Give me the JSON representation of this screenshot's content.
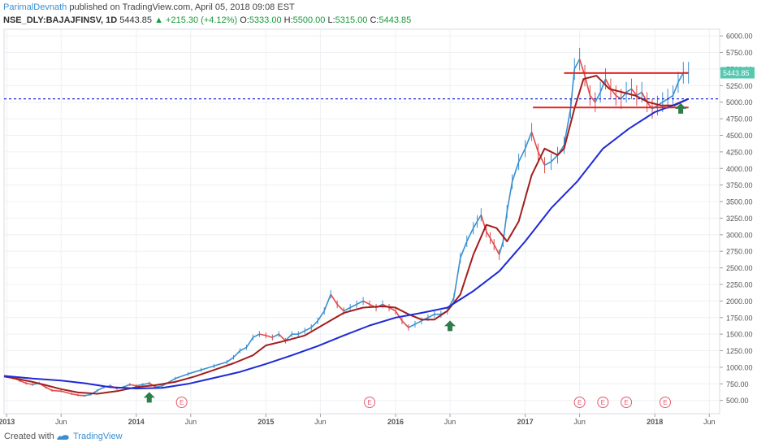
{
  "header": {
    "author": "ParimalDevnath",
    "published_text": "published on TradingView.com, April 05, 2018 09:08 EST",
    "symbol": "NSE_DLY:BAJAJFINSV, 1D",
    "last": "5443.85",
    "change": "+215.30 (+4.12%)",
    "open_label": "O:",
    "open": "5333.00",
    "high_label": "H:",
    "high": "5500.00",
    "low_label": "L:",
    "low": "5315.00",
    "close_label": "C:",
    "close": "5443.85"
  },
  "footer": {
    "created_with": "Created with",
    "brand": "TradingView"
  },
  "colors": {
    "price_up": "#3a8fd0",
    "price_down": "#e04b4b",
    "ma_fast": "#a31d1d",
    "ma_slow": "#1e2ad6",
    "resistance": "#e52424",
    "dotted_level": "#1e2ad6",
    "arrow": "#2f7d4a",
    "earnings": "#e35a6f",
    "price_tag": "#55c8b0"
  },
  "chart_data": {
    "type": "line",
    "title": "",
    "xlabel": "",
    "ylabel": "",
    "ylim": [
      300,
      6100
    ],
    "y_ticks": [
      500,
      750,
      1000,
      1250,
      1500,
      1750,
      2000,
      2250,
      2500,
      2750,
      3000,
      3250,
      3500,
      3750,
      4000,
      4250,
      4500,
      4750,
      5000,
      5250,
      5500,
      5750,
      6000
    ],
    "y_tick_labels": [
      "500.00",
      "750.00",
      "1000.00",
      "1250.00",
      "1500.00",
      "1750.00",
      "2000.00",
      "2250.00",
      "2500.00",
      "2750.00",
      "3000.00",
      "3250.00",
      "3500.00",
      "3750.00",
      "4000.00",
      "4250.00",
      "4500.00",
      "4750.00",
      "5000.00",
      "5250.00",
      "5500.00",
      "5750.00",
      "6000.00"
    ],
    "x_ticks": [
      {
        "label": "2013",
        "t": 2013.0
      },
      {
        "label": "Jun",
        "t": 2013.42
      },
      {
        "label": "2014",
        "t": 2014.0
      },
      {
        "label": "Jun",
        "t": 2014.42
      },
      {
        "label": "2015",
        "t": 2015.0
      },
      {
        "label": "Jun",
        "t": 2015.42
      },
      {
        "label": "2016",
        "t": 2016.0
      },
      {
        "label": "Jun",
        "t": 2016.42
      },
      {
        "label": "2017",
        "t": 2017.0
      },
      {
        "label": "Jun",
        "t": 2017.42
      },
      {
        "label": "2018",
        "t": 2018.0
      },
      {
        "label": "Jun",
        "t": 2018.42
      }
    ],
    "xlim": [
      2012.98,
      2018.5
    ],
    "price_tag": "5443.85",
    "series": [
      {
        "kind": "price",
        "x": [
          2012.98,
          2013.05,
          2013.1,
          2013.15,
          2013.2,
          2013.25,
          2013.3,
          2013.35,
          2013.42,
          2013.5,
          2013.55,
          2013.6,
          2013.65,
          2013.7,
          2013.75,
          2013.8,
          2013.85,
          2013.9,
          2013.95,
          2014.0,
          2014.05,
          2014.1,
          2014.15,
          2014.2,
          2014.3,
          2014.4,
          2014.5,
          2014.6,
          2014.7,
          2014.75,
          2014.8,
          2014.85,
          2014.9,
          2014.95,
          2015.0,
          2015.05,
          2015.1,
          2015.15,
          2015.2,
          2015.25,
          2015.3,
          2015.35,
          2015.4,
          2015.45,
          2015.5,
          2015.55,
          2015.6,
          2015.65,
          2015.7,
          2015.75,
          2015.8,
          2015.85,
          2015.9,
          2015.95,
          2016.0,
          2016.05,
          2016.1,
          2016.15,
          2016.2,
          2016.25,
          2016.3,
          2016.35,
          2016.4,
          2016.45,
          2016.5,
          2016.55,
          2016.6,
          2016.63,
          2016.66,
          2016.7,
          2016.73,
          2016.76,
          2016.8,
          2016.83,
          2016.86,
          2016.9,
          2016.95,
          2017.0,
          2017.05,
          2017.1,
          2017.15,
          2017.2,
          2017.25,
          2017.3,
          2017.35,
          2017.38,
          2017.42,
          2017.46,
          2017.5,
          2017.54,
          2017.58,
          2017.62,
          2017.66,
          2017.7,
          2017.74,
          2017.78,
          2017.82,
          2017.86,
          2017.9,
          2017.94,
          2017.98,
          2018.02,
          2018.06,
          2018.1,
          2018.14,
          2018.18,
          2018.22,
          2018.26
        ],
        "values": [
          870,
          840,
          800,
          760,
          740,
          760,
          700,
          650,
          640,
          600,
          580,
          570,
          590,
          650,
          700,
          720,
          680,
          700,
          740,
          720,
          740,
          760,
          700,
          720,
          830,
          900,
          960,
          1020,
          1080,
          1150,
          1250,
          1300,
          1450,
          1500,
          1480,
          1450,
          1500,
          1400,
          1500,
          1500,
          1550,
          1600,
          1700,
          1850,
          2100,
          1950,
          1850,
          1900,
          1950,
          2000,
          1950,
          1900,
          1950,
          1900,
          1850,
          1700,
          1600,
          1650,
          1700,
          1750,
          1800,
          1800,
          1850,
          2050,
          2650,
          2900,
          3100,
          3200,
          3300,
          3050,
          2950,
          2850,
          2700,
          2900,
          3350,
          3800,
          4100,
          4300,
          4550,
          4250,
          4050,
          4100,
          4200,
          4350,
          4900,
          5500,
          5650,
          5400,
          5100,
          5000,
          5150,
          5350,
          5200,
          5100,
          5050,
          5150,
          5200,
          5100,
          5150,
          5000,
          4900,
          4950,
          5000,
          5050,
          5100,
          5300,
          5443.85,
          5443.85
        ]
      },
      {
        "kind": "ma_fast",
        "x": [
          2012.98,
          2013.1,
          2013.2,
          2013.3,
          2013.42,
          2013.55,
          2013.7,
          2013.85,
          2014.0,
          2014.15,
          2014.3,
          2014.45,
          2014.6,
          2014.75,
          2014.9,
          2015.0,
          2015.15,
          2015.3,
          2015.45,
          2015.6,
          2015.75,
          2015.9,
          2016.0,
          2016.1,
          2016.2,
          2016.3,
          2016.4,
          2016.5,
          2016.6,
          2016.7,
          2016.78,
          2016.86,
          2016.95,
          2017.05,
          2017.15,
          2017.25,
          2017.3,
          2017.38,
          2017.45,
          2017.55,
          2017.65,
          2017.75,
          2017.85,
          2017.95,
          2018.05,
          2018.15,
          2018.26
        ],
        "values": [
          860,
          820,
          780,
          730,
          670,
          620,
          600,
          640,
          700,
          730,
          780,
          860,
          960,
          1060,
          1180,
          1330,
          1400,
          1480,
          1650,
          1820,
          1900,
          1920,
          1900,
          1800,
          1720,
          1720,
          1850,
          2100,
          2700,
          3150,
          3100,
          2900,
          3200,
          3900,
          4300,
          4200,
          4300,
          4900,
          5350,
          5400,
          5200,
          5150,
          5100,
          5000,
          4950,
          4950,
          5050
        ]
      },
      {
        "kind": "ma_slow",
        "x": [
          2012.98,
          2013.2,
          2013.42,
          2013.6,
          2013.8,
          2014.0,
          2014.2,
          2014.4,
          2014.6,
          2014.8,
          2015.0,
          2015.2,
          2015.4,
          2015.6,
          2015.8,
          2016.0,
          2016.2,
          2016.4,
          2016.6,
          2016.8,
          2017.0,
          2017.2,
          2017.4,
          2017.6,
          2017.8,
          2018.0,
          2018.15,
          2018.26
        ],
        "values": [
          870,
          830,
          800,
          760,
          700,
          680,
          690,
          750,
          840,
          930,
          1050,
          1180,
          1320,
          1480,
          1630,
          1750,
          1820,
          1900,
          2150,
          2450,
          2900,
          3400,
          3800,
          4300,
          4600,
          4850,
          4960,
          5050
        ]
      }
    ],
    "annotations": {
      "resistance_upper": {
        "value": 5440,
        "x_from": 2017.3,
        "x_to": 2018.26
      },
      "resistance_lower": {
        "value": 4920,
        "x_from": 2017.06,
        "x_to": 2018.26
      },
      "dotted_level": {
        "value": 5050
      },
      "up_arrows": [
        {
          "t": 2014.1,
          "value": 540
        },
        {
          "t": 2016.42,
          "value": 1620
        },
        {
          "t": 2018.2,
          "value": 4900
        }
      ],
      "earnings_markers": [
        {
          "t": 2014.35,
          "label": "E"
        },
        {
          "t": 2015.8,
          "label": "E"
        },
        {
          "t": 2017.42,
          "label": "E"
        },
        {
          "t": 2017.6,
          "label": "E"
        },
        {
          "t": 2017.78,
          "label": "E"
        },
        {
          "t": 2018.08,
          "label": "E"
        }
      ]
    }
  }
}
